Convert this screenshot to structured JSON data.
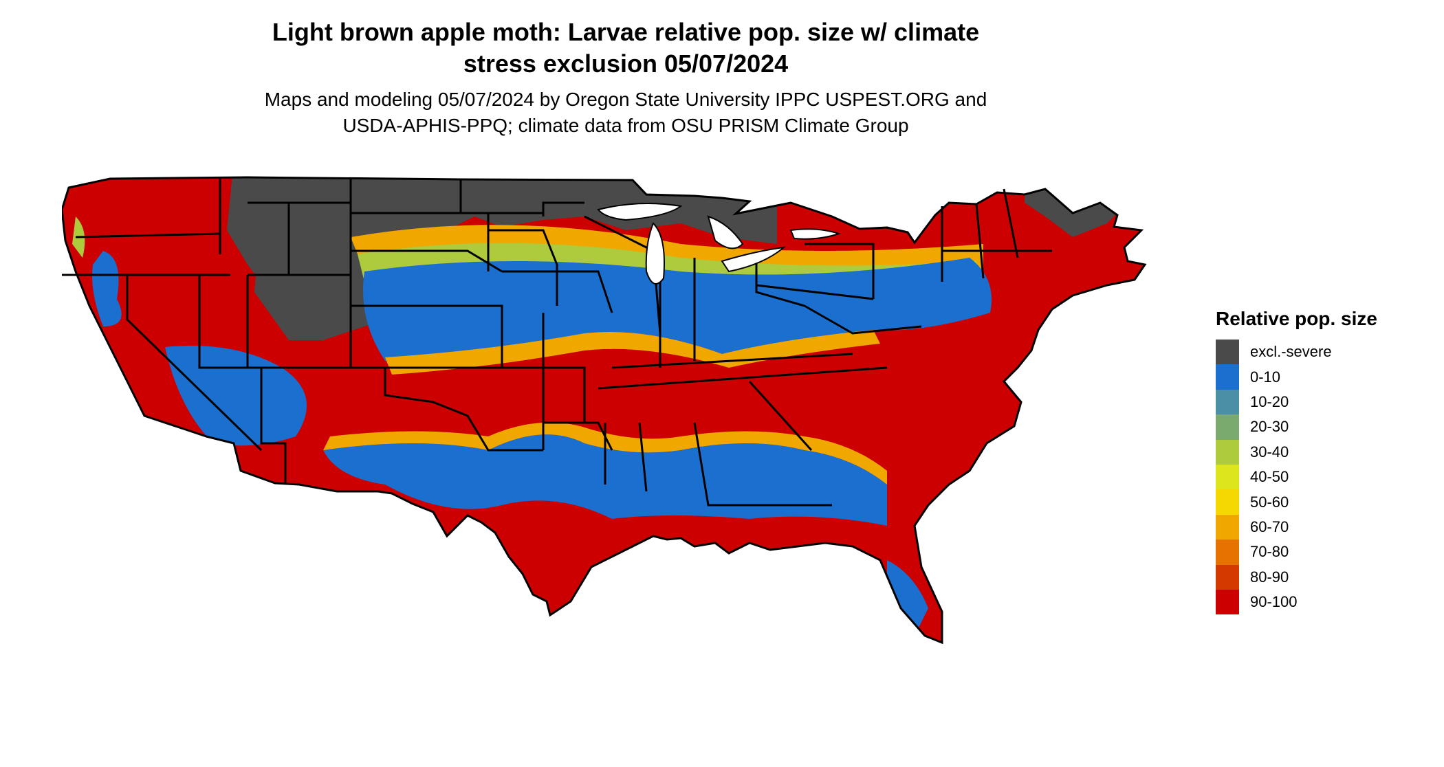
{
  "title_line1": "Light brown apple moth: Larvae relative pop. size w/ climate",
  "title_line2": "stress exclusion 05/07/2024",
  "subtitle_line1": "Maps and modeling 05/07/2024 by Oregon State University IPPC USPEST.ORG and",
  "subtitle_line2": "USDA-APHIS-PPQ; climate data from OSU PRISM Climate Group",
  "legend": {
    "title": "Relative pop. size",
    "items": [
      {
        "label": "excl.-severe",
        "color": "#4a4a4a"
      },
      {
        "label": "0-10",
        "color": "#1a6fcf"
      },
      {
        "label": "10-20",
        "color": "#4a8fa5"
      },
      {
        "label": "20-30",
        "color": "#7aaa6e"
      },
      {
        "label": "30-40",
        "color": "#aecb3d"
      },
      {
        "label": "40-50",
        "color": "#dde61c"
      },
      {
        "label": "50-60",
        "color": "#f5d800"
      },
      {
        "label": "60-70",
        "color": "#f0a800"
      },
      {
        "label": "70-80",
        "color": "#e67300"
      },
      {
        "label": "80-90",
        "color": "#d43a00"
      },
      {
        "label": "90-100",
        "color": "#cc0000"
      }
    ]
  }
}
